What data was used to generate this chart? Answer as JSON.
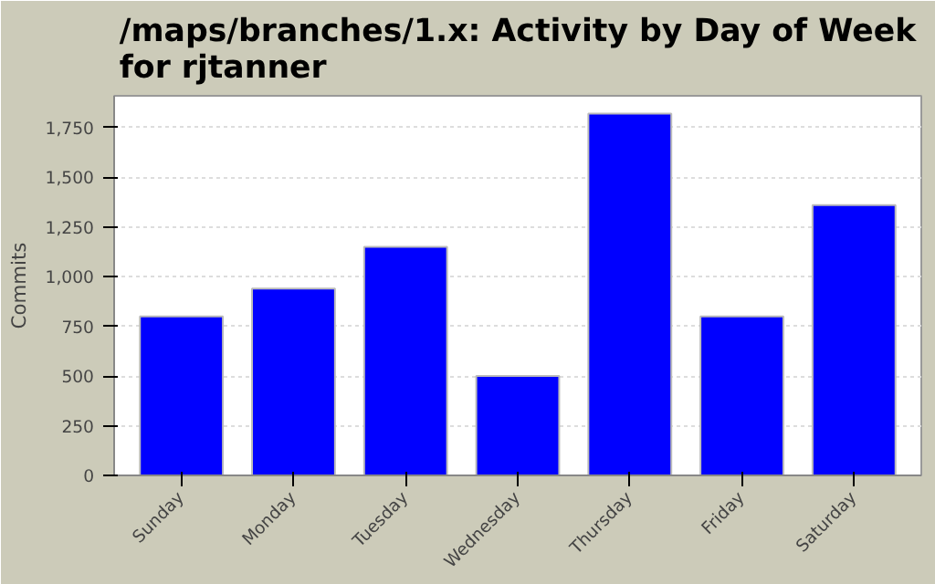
{
  "chart_data": {
    "type": "bar",
    "title": "/maps/branches/1.x: Activity by Day of Week for rjtanner",
    "ylabel": "Commits",
    "categories": [
      "Sunday",
      "Monday",
      "Tuesday",
      "Wednesday",
      "Thursday",
      "Friday",
      "Saturday"
    ],
    "values": [
      800,
      940,
      1150,
      500,
      1820,
      800,
      1360
    ],
    "color": "#0000ff",
    "ylim": [
      0,
      1910
    ],
    "yticks": [
      0,
      {
        "value": 250,
        "label": "250"
      },
      {
        "value": 500,
        "label": "500"
      },
      {
        "value": 750,
        "label": "750"
      },
      {
        "value": 1000,
        "label": "1,000"
      },
      {
        "value": 1250,
        "label": "1,250"
      },
      {
        "value": 1500,
        "label": "1,500"
      },
      {
        "value": 1750,
        "label": "1,750"
      }
    ],
    "grid": "y"
  }
}
